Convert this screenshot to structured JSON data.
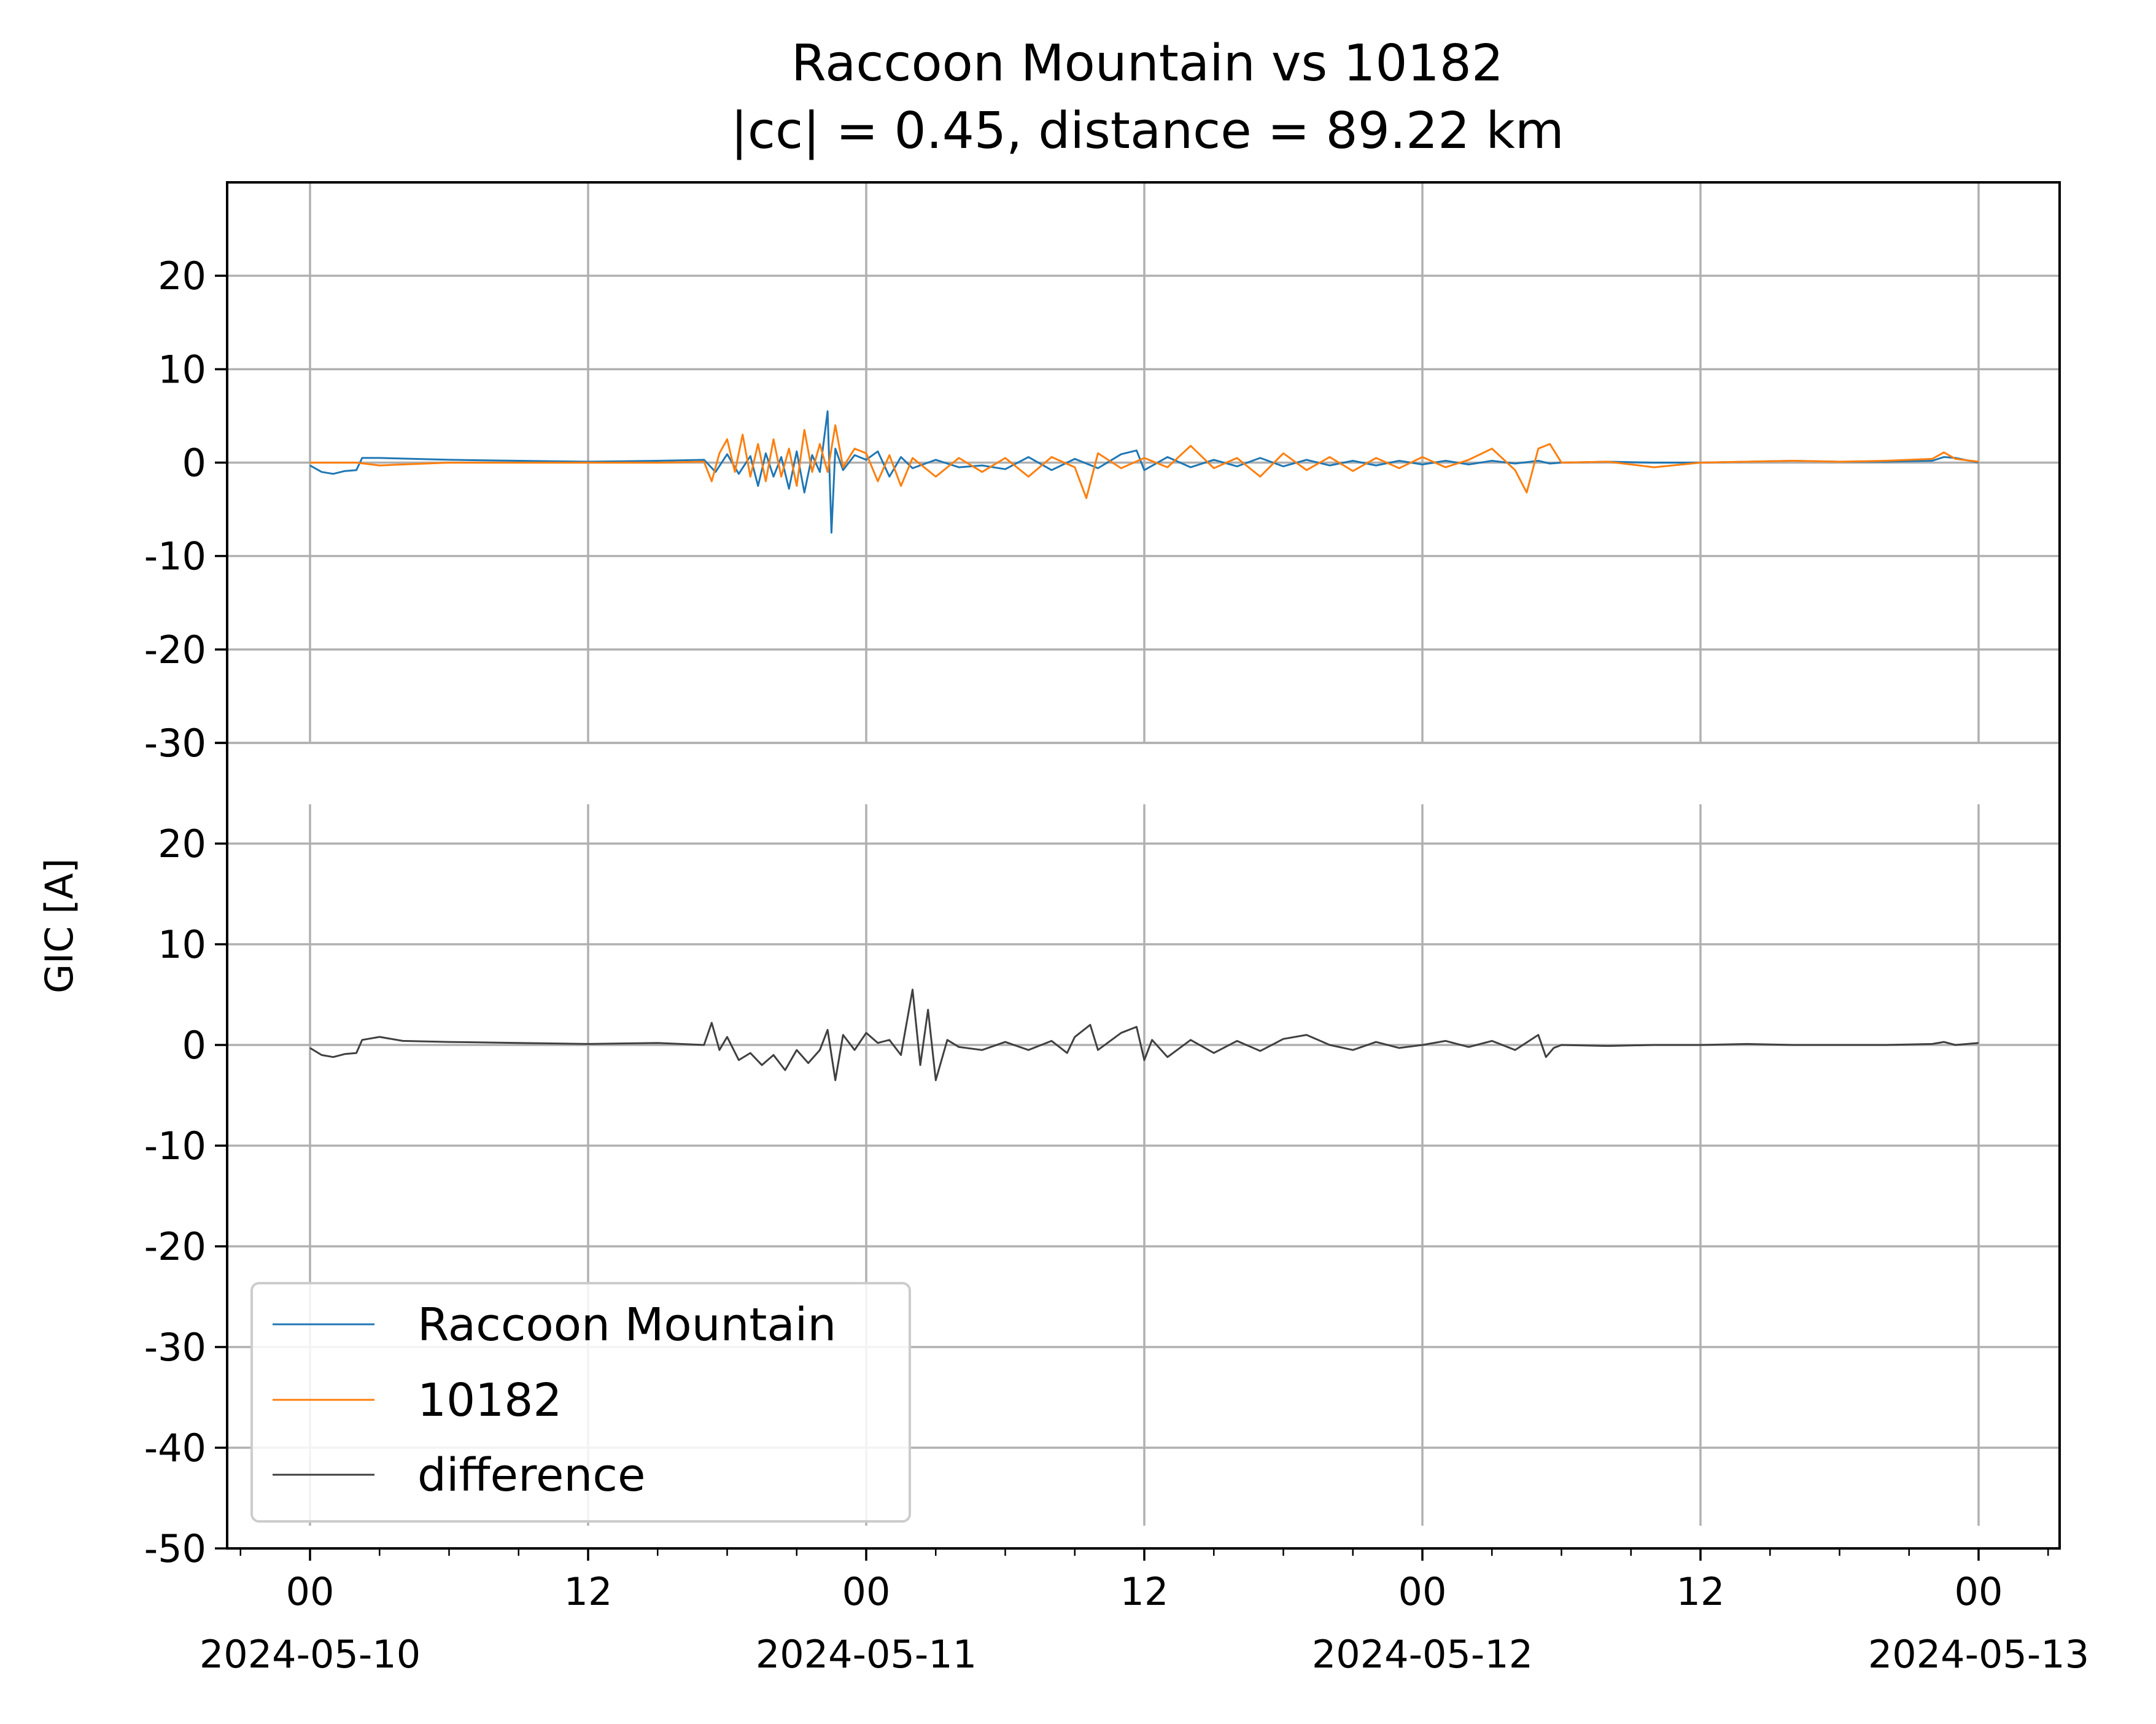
{
  "title": "Raccoon Mountain vs 10182",
  "subtitle": "|cc| = 0.45, distance = 89.22 km",
  "ylabel": "GIC [A]",
  "colors": {
    "raccoon": "#1f77b4",
    "station": "#ff7f0e",
    "difference": "#404040",
    "grid": "#b0b0b0"
  },
  "xticks": [
    {
      "t": 0,
      "label": "00",
      "date": "2024-05-10"
    },
    {
      "t": 12,
      "label": "12",
      "date": ""
    },
    {
      "t": 24,
      "label": "00",
      "date": "2024-05-11"
    },
    {
      "t": 36,
      "label": "12",
      "date": ""
    },
    {
      "t": 48,
      "label": "00",
      "date": "2024-05-12"
    },
    {
      "t": 60,
      "label": "12",
      "date": ""
    },
    {
      "t": 72,
      "label": "00",
      "date": "2024-05-13"
    }
  ],
  "legend": [
    {
      "label": "Raccoon Mountain",
      "series": "raccoon"
    },
    {
      "label": "10182",
      "series": "station"
    },
    {
      "label": "difference",
      "series": "difference"
    }
  ],
  "chart_data": [
    {
      "type": "line",
      "panel": "top",
      "xlim": [
        "2024-05-09 20:24",
        "2024-05-13 03:12"
      ],
      "ylim": [
        -30,
        30
      ],
      "yticks": [
        20,
        10,
        0,
        -10,
        -20,
        -30
      ],
      "grid": true,
      "series": [
        {
          "name": "Raccoon Mountain",
          "key": "raccoon",
          "x": [
            "2024-05-10 00:00",
            "2024-05-10 00:30",
            "2024-05-10 01:00",
            "2024-05-10 01:30",
            "2024-05-10 02:00",
            "2024-05-10 02:15",
            "2024-05-10 03:00",
            "2024-05-10 06:00",
            "2024-05-10 09:00",
            "2024-05-10 12:00",
            "2024-05-10 15:00",
            "2024-05-10 17:00",
            "2024-05-10 17:30",
            "2024-05-10 18:00",
            "2024-05-10 18:30",
            "2024-05-10 19:00",
            "2024-05-10 19:20",
            "2024-05-10 19:40",
            "2024-05-10 20:00",
            "2024-05-10 20:20",
            "2024-05-10 20:40",
            "2024-05-10 21:00",
            "2024-05-10 21:20",
            "2024-05-10 21:40",
            "2024-05-10 22:00",
            "2024-05-10 22:20",
            "2024-05-10 22:30",
            "2024-05-10 22:40",
            "2024-05-10 23:00",
            "2024-05-10 23:30",
            "2024-05-11 00:00",
            "2024-05-11 00:30",
            "2024-05-11 01:00",
            "2024-05-11 01:30",
            "2024-05-11 02:00",
            "2024-05-11 03:00",
            "2024-05-11 04:00",
            "2024-05-11 05:00",
            "2024-05-11 06:00",
            "2024-05-11 07:00",
            "2024-05-11 08:00",
            "2024-05-11 09:00",
            "2024-05-11 10:00",
            "2024-05-11 11:00",
            "2024-05-11 11:40",
            "2024-05-11 12:00",
            "2024-05-11 13:00",
            "2024-05-11 14:00",
            "2024-05-11 15:00",
            "2024-05-11 16:00",
            "2024-05-11 17:00",
            "2024-05-11 18:00",
            "2024-05-11 19:00",
            "2024-05-11 20:00",
            "2024-05-11 21:00",
            "2024-05-11 22:00",
            "2024-05-11 23:00",
            "2024-05-12 00:00",
            "2024-05-12 01:00",
            "2024-05-12 02:00",
            "2024-05-12 03:00",
            "2024-05-12 04:00",
            "2024-05-12 05:00",
            "2024-05-12 05:30",
            "2024-05-12 06:00",
            "2024-05-12 08:00",
            "2024-05-12 10:00",
            "2024-05-12 12:00",
            "2024-05-12 14:00",
            "2024-05-12 16:00",
            "2024-05-12 18:00",
            "2024-05-12 20:00",
            "2024-05-12 22:00",
            "2024-05-12 22:30",
            "2024-05-12 23:00",
            "2024-05-13 00:00"
          ],
          "y": [
            -0.3,
            -1.0,
            -1.2,
            -0.9,
            -0.8,
            0.5,
            0.5,
            0.3,
            0.2,
            0.1,
            0.2,
            0.3,
            -1.0,
            0.9,
            -1.2,
            0.7,
            -2.5,
            1.0,
            -1.5,
            0.6,
            -2.8,
            1.2,
            -3.2,
            0.8,
            -1.0,
            5.5,
            -7.5,
            1.5,
            -0.8,
            0.8,
            0.3,
            1.2,
            -1.5,
            0.6,
            -0.6,
            0.3,
            -0.5,
            -0.3,
            -0.7,
            0.6,
            -0.8,
            0.4,
            -0.6,
            0.9,
            1.3,
            -0.8,
            0.6,
            -0.5,
            0.3,
            -0.4,
            0.5,
            -0.4,
            0.3,
            -0.3,
            0.2,
            -0.3,
            0.2,
            -0.2,
            0.2,
            -0.2,
            0.2,
            -0.1,
            0.2,
            -0.1,
            0.0,
            0.1,
            0.0,
            0.0,
            0.1,
            0.2,
            0.1,
            0.1,
            0.2,
            0.6,
            0.5,
            0.0
          ]
        },
        {
          "name": "10182",
          "key": "station",
          "x": [
            "2024-05-10 00:00",
            "2024-05-10 02:00",
            "2024-05-10 03:00",
            "2024-05-10 06:00",
            "2024-05-10 09:00",
            "2024-05-10 12:00",
            "2024-05-10 15:00",
            "2024-05-10 17:00",
            "2024-05-10 17:20",
            "2024-05-10 17:40",
            "2024-05-10 18:00",
            "2024-05-10 18:20",
            "2024-05-10 18:40",
            "2024-05-10 19:00",
            "2024-05-10 19:20",
            "2024-05-10 19:40",
            "2024-05-10 20:00",
            "2024-05-10 20:20",
            "2024-05-10 20:40",
            "2024-05-10 21:00",
            "2024-05-10 21:20",
            "2024-05-10 21:40",
            "2024-05-10 22:00",
            "2024-05-10 22:20",
            "2024-05-10 22:40",
            "2024-05-10 23:00",
            "2024-05-10 23:30",
            "2024-05-11 00:00",
            "2024-05-11 00:30",
            "2024-05-11 01:00",
            "2024-05-11 01:30",
            "2024-05-11 02:00",
            "2024-05-11 03:00",
            "2024-05-11 04:00",
            "2024-05-11 05:00",
            "2024-05-11 06:00",
            "2024-05-11 07:00",
            "2024-05-11 08:00",
            "2024-05-11 09:00",
            "2024-05-11 09:30",
            "2024-05-11 10:00",
            "2024-05-11 11:00",
            "2024-05-11 12:00",
            "2024-05-11 13:00",
            "2024-05-11 14:00",
            "2024-05-11 15:00",
            "2024-05-11 16:00",
            "2024-05-11 17:00",
            "2024-05-11 18:00",
            "2024-05-11 19:00",
            "2024-05-11 20:00",
            "2024-05-11 21:00",
            "2024-05-11 22:00",
            "2024-05-11 23:00",
            "2024-05-12 00:00",
            "2024-05-12 01:00",
            "2024-05-12 02:00",
            "2024-05-12 03:00",
            "2024-05-12 04:00",
            "2024-05-12 04:30",
            "2024-05-12 05:00",
            "2024-05-12 05:30",
            "2024-05-12 06:00",
            "2024-05-12 08:00",
            "2024-05-12 10:00",
            "2024-05-12 12:00",
            "2024-05-12 14:00",
            "2024-05-12 16:00",
            "2024-05-12 18:00",
            "2024-05-12 20:00",
            "2024-05-12 22:00",
            "2024-05-12 22:30",
            "2024-05-12 23:00",
            "2024-05-13 00:00"
          ],
          "y": [
            0.0,
            0.0,
            -0.3,
            0.0,
            0.0,
            0.0,
            0.0,
            0.1,
            -2.0,
            1.0,
            2.5,
            -1.0,
            3.0,
            -1.5,
            2.0,
            -2.0,
            2.5,
            -1.5,
            1.5,
            -2.5,
            3.5,
            -1.0,
            2.0,
            -1.0,
            4.0,
            -0.5,
            1.5,
            1.0,
            -2.0,
            0.8,
            -2.5,
            0.5,
            -1.5,
            0.5,
            -1.0,
            0.5,
            -1.5,
            0.6,
            -0.5,
            -3.8,
            1.0,
            -0.6,
            0.5,
            -0.5,
            1.8,
            -0.6,
            0.5,
            -1.5,
            1.0,
            -0.8,
            0.6,
            -0.9,
            0.5,
            -0.6,
            0.6,
            -0.5,
            0.3,
            1.5,
            -0.8,
            -3.2,
            1.5,
            2.0,
            0.0,
            0.1,
            -0.5,
            0.0,
            0.1,
            0.2,
            0.1,
            0.2,
            0.4,
            1.1,
            0.4,
            0.1
          ]
        }
      ]
    },
    {
      "type": "line",
      "panel": "bottom",
      "xlim": [
        "2024-05-09 20:24",
        "2024-05-13 03:12"
      ],
      "ylim": [
        -50,
        30
      ],
      "yticks": [
        30,
        20,
        10,
        0,
        -10,
        -20,
        -30,
        -40,
        -50
      ],
      "grid": true,
      "series": [
        {
          "name": "difference",
          "key": "difference",
          "x": [
            "2024-05-10 00:00",
            "2024-05-10 00:30",
            "2024-05-10 01:00",
            "2024-05-10 01:30",
            "2024-05-10 02:00",
            "2024-05-10 02:15",
            "2024-05-10 03:00",
            "2024-05-10 04:00",
            "2024-05-10 06:00",
            "2024-05-10 09:00",
            "2024-05-10 12:00",
            "2024-05-10 15:00",
            "2024-05-10 17:00",
            "2024-05-10 17:20",
            "2024-05-10 17:40",
            "2024-05-10 18:00",
            "2024-05-10 18:30",
            "2024-05-10 19:00",
            "2024-05-10 19:30",
            "2024-05-10 20:00",
            "2024-05-10 20:30",
            "2024-05-10 21:00",
            "2024-05-10 21:30",
            "2024-05-10 22:00",
            "2024-05-10 22:20",
            "2024-05-10 22:40",
            "2024-05-10 23:00",
            "2024-05-10 23:30",
            "2024-05-11 00:00",
            "2024-05-11 00:30",
            "2024-05-11 01:00",
            "2024-05-11 01:30",
            "2024-05-11 02:00",
            "2024-05-11 02:20",
            "2024-05-11 02:40",
            "2024-05-11 03:00",
            "2024-05-11 03:30",
            "2024-05-11 04:00",
            "2024-05-11 05:00",
            "2024-05-11 06:00",
            "2024-05-11 07:00",
            "2024-05-11 08:00",
            "2024-05-11 08:40",
            "2024-05-11 09:00",
            "2024-05-11 09:40",
            "2024-05-11 10:00",
            "2024-05-11 11:00",
            "2024-05-11 11:40",
            "2024-05-11 12:00",
            "2024-05-11 12:20",
            "2024-05-11 13:00",
            "2024-05-11 14:00",
            "2024-05-11 15:00",
            "2024-05-11 16:00",
            "2024-05-11 17:00",
            "2024-05-11 18:00",
            "2024-05-11 19:00",
            "2024-05-11 20:00",
            "2024-05-11 21:00",
            "2024-05-11 22:00",
            "2024-05-11 23:00",
            "2024-05-12 00:00",
            "2024-05-12 01:00",
            "2024-05-12 02:00",
            "2024-05-12 03:00",
            "2024-05-12 04:00",
            "2024-05-12 05:00",
            "2024-05-12 05:20",
            "2024-05-12 05:40",
            "2024-05-12 06:00",
            "2024-05-12 08:00",
            "2024-05-12 10:00",
            "2024-05-12 12:00",
            "2024-05-12 14:00",
            "2024-05-12 16:00",
            "2024-05-12 18:00",
            "2024-05-12 20:00",
            "2024-05-12 22:00",
            "2024-05-12 22:30",
            "2024-05-12 23:00",
            "2024-05-13 00:00"
          ],
          "y": [
            -0.3,
            -1.0,
            -1.2,
            -0.9,
            -0.8,
            0.5,
            0.8,
            0.4,
            0.3,
            0.2,
            0.1,
            0.2,
            0.0,
            2.2,
            -0.5,
            0.8,
            -1.5,
            -0.8,
            -2.0,
            -1.0,
            -2.5,
            -0.5,
            -1.8,
            -0.5,
            1.5,
            -3.5,
            1.0,
            -0.5,
            1.2,
            0.2,
            0.5,
            -1.0,
            5.5,
            -2.0,
            3.5,
            -3.5,
            0.5,
            -0.2,
            -0.5,
            0.3,
            -0.5,
            0.4,
            -0.8,
            0.8,
            2.0,
            -0.5,
            1.2,
            1.8,
            -1.5,
            0.5,
            -1.2,
            0.5,
            -0.8,
            0.4,
            -0.6,
            0.6,
            1.0,
            0.0,
            -0.5,
            0.3,
            -0.3,
            0.0,
            0.4,
            -0.2,
            0.4,
            -0.5,
            1.0,
            -1.2,
            -0.3,
            0.0,
            -0.1,
            0.0,
            0.0,
            0.1,
            0.0,
            0.0,
            0.0,
            0.1,
            0.3,
            0.0,
            0.2
          ]
        }
      ]
    }
  ]
}
